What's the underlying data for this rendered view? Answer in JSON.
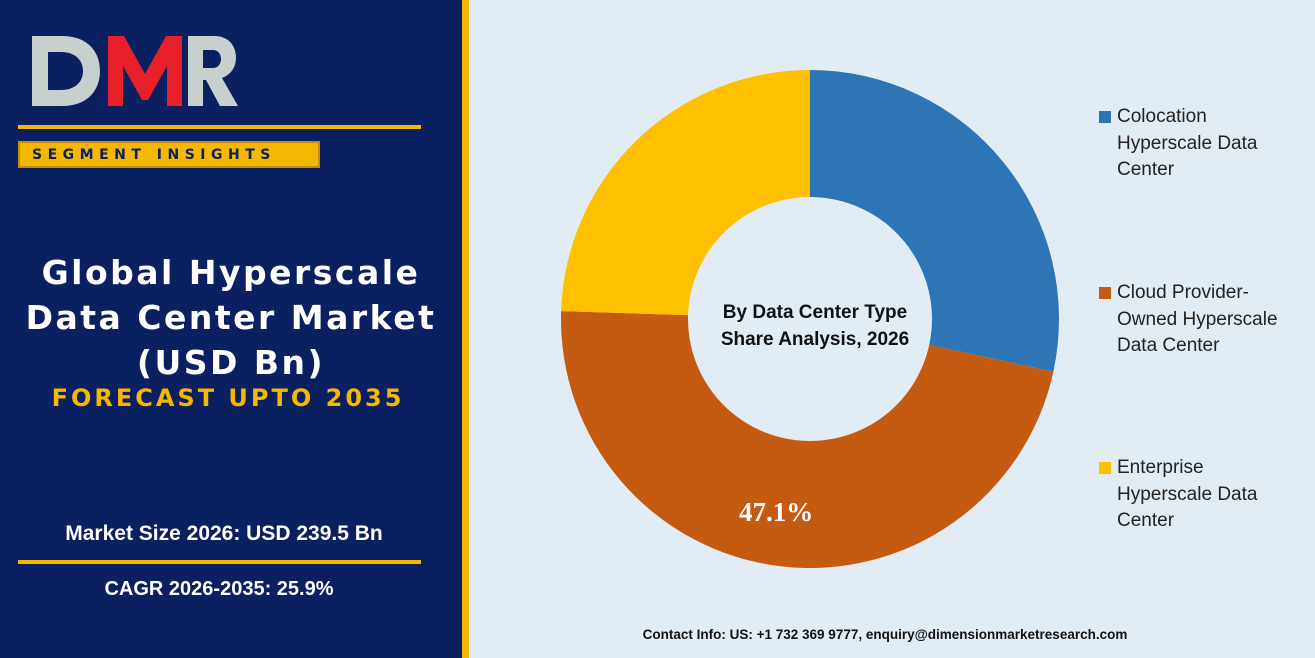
{
  "brand": {
    "logo_text": "DMR",
    "logo_red": "#e8202a",
    "logo_grey": "#c8cfcf"
  },
  "left_panel": {
    "badge": "SEGMENT INSIGHTS",
    "title_lines": [
      "Global Hyperscale",
      "Data Center Market",
      "(USD Bn)"
    ],
    "forecast": "FORECAST UPTO 2035",
    "market_size": "Market Size 2026: USD 239.5 Bn",
    "cagr": "CAGR 2026-2035: 25.9%",
    "colors": {
      "background": "#0a2060",
      "accent": "#f5b800"
    }
  },
  "chart_data": {
    "type": "pie",
    "style": "donut",
    "center_title_lines": [
      "By Data Center Type",
      "Share Analysis, 2026"
    ],
    "categories": [
      "Colocation Hyperscale Data Center",
      "Cloud Provider-Owned Hyperscale Data Center",
      "Enterprise Hyperscale Data Center"
    ],
    "values": [
      28.4,
      47.1,
      24.5
    ],
    "colors": [
      "#2e75b6",
      "#c55a11",
      "#ffc000"
    ],
    "data_labels": [
      "",
      "47.1%",
      ""
    ],
    "legend_position": "right",
    "legend": [
      {
        "lines": [
          "Colocation",
          "Hyperscale Data",
          "Center"
        ],
        "color": "#2e75b6"
      },
      {
        "lines": [
          "Cloud Provider-",
          "Owned Hyperscale",
          "Data Center"
        ],
        "color": "#c55a11"
      },
      {
        "lines": [
          "Enterprise",
          "Hyperscale Data",
          "Center"
        ],
        "color": "#ffc000"
      }
    ]
  },
  "footer": {
    "contact": "Contact Info: US: +1 732 369 9777, enquiry@dimensionmarketresearch.com"
  }
}
